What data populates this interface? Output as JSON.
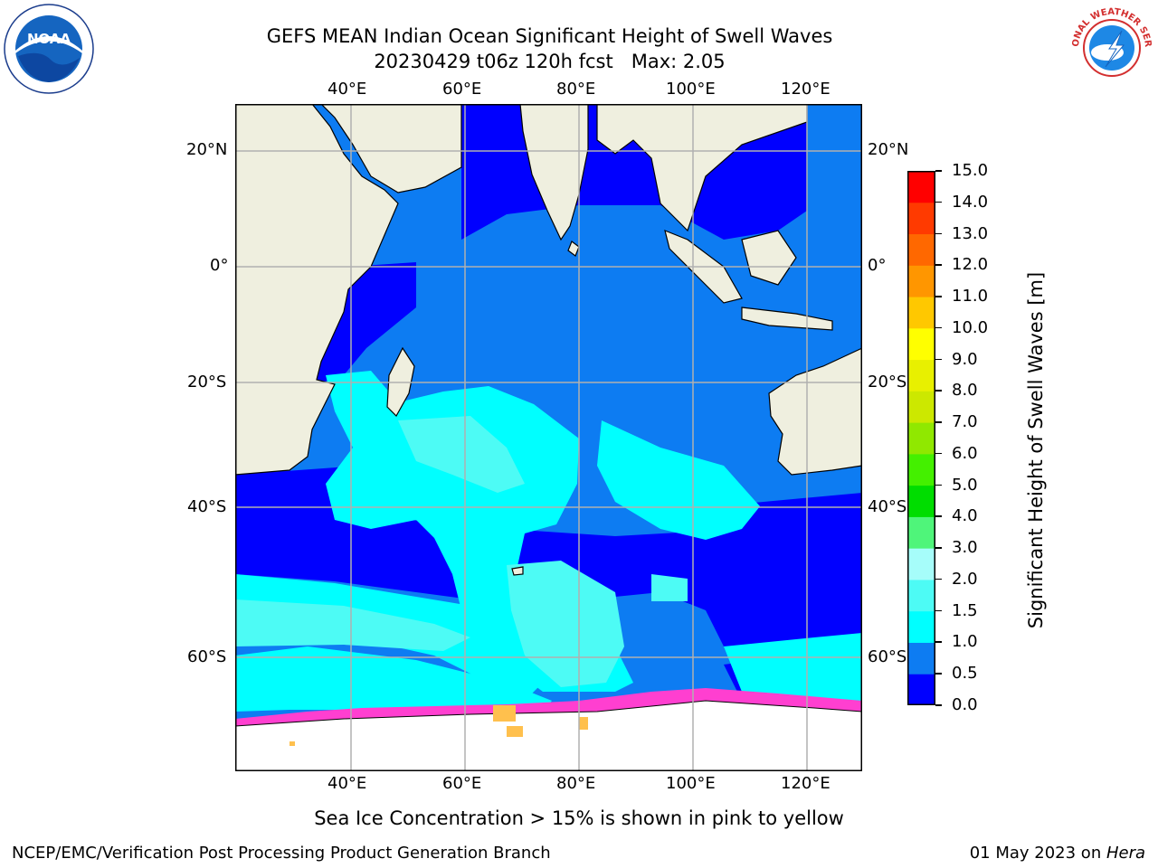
{
  "header": {
    "title_line1": "GEFS MEAN Indian Ocean Significant Height of Swell Waves",
    "title_line2": "20230429 t06z 120h fcst   Max: 2.05"
  },
  "logos": {
    "noaa": {
      "text": "NOAA",
      "icon": "noaa-logo"
    },
    "nws": {
      "text": "NATIONAL WEATHER SERVICE",
      "icon": "nws-logo"
    }
  },
  "map": {
    "lon_labels": [
      "40°E",
      "60°E",
      "80°E",
      "100°E",
      "120°E"
    ],
    "lat_labels_left": [
      "20°N",
      "0°",
      "20°S",
      "40°S",
      "60°S"
    ],
    "lat_labels_right": [
      "20°N",
      "0°",
      "20°S",
      "40°S",
      "60°S"
    ],
    "lon_range": [
      20,
      130
    ],
    "lat_range": [
      -73,
      29
    ],
    "grid": true,
    "colors": {
      "land": "#efefdf",
      "ice": "#ffffff",
      "sea_ice_edge": "#ff3fd0"
    }
  },
  "colorbar": {
    "title": "Significant Height of Swell Waves [m]",
    "levels": [
      "0.0",
      "0.5",
      "1.0",
      "1.5",
      "2.0",
      "3.0",
      "4.0",
      "5.0",
      "6.0",
      "7.0",
      "8.0",
      "9.0",
      "10.0",
      "11.0",
      "12.0",
      "13.0",
      "14.0",
      "15.0"
    ],
    "colors": [
      "#0000ff",
      "#0d7cf2",
      "#00ffff",
      "#4dfbf5",
      "#a6fdfa",
      "#4ff57a",
      "#00dd00",
      "#44f000",
      "#90e800",
      "#cce800",
      "#e8f000",
      "#ffff00",
      "#ffc800",
      "#ff9600",
      "#ff6800",
      "#ff3a00",
      "#ff0000"
    ]
  },
  "notes": {
    "sea_ice": "Sea Ice Concentration > 15% is shown in pink to yellow"
  },
  "footer": {
    "left": "NCEP/EMC/Verification Post Processing Product Generation Branch",
    "right_date": "01 May 2023 on ",
    "right_host": "Hera"
  }
}
